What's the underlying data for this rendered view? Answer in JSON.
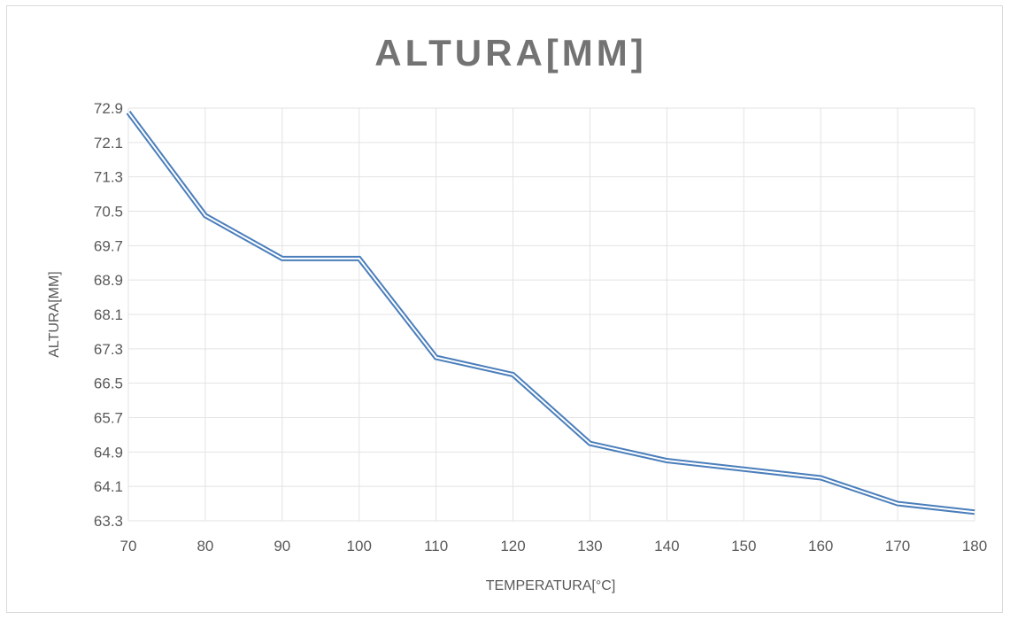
{
  "chart_data": {
    "type": "line",
    "title": "ALTURA[MM]",
    "xlabel": "TEMPERATURA[°C]",
    "ylabel": "ALTURA[MM]",
    "x": [
      70,
      80,
      90,
      100,
      110,
      120,
      130,
      140,
      150,
      160,
      170,
      180
    ],
    "series": [
      {
        "values": [
          72.8,
          70.4,
          69.4,
          69.4,
          67.1,
          66.7,
          65.1,
          64.7,
          64.5,
          64.3,
          63.7,
          63.5
        ],
        "color": "#4a7ebb"
      }
    ],
    "xticks": [
      "70",
      "80",
      "90",
      "100",
      "110",
      "120",
      "130",
      "140",
      "150",
      "160",
      "170",
      "180"
    ],
    "yticks": [
      "63.3",
      "64.1",
      "64.9",
      "65.7",
      "66.5",
      "67.3",
      "68.1",
      "68.9",
      "69.7",
      "70.5",
      "71.3",
      "72.1",
      "72.9"
    ],
    "ylim": [
      63.3,
      72.9
    ],
    "xlim": [
      70,
      180
    ],
    "grid": true,
    "legend": "none"
  }
}
